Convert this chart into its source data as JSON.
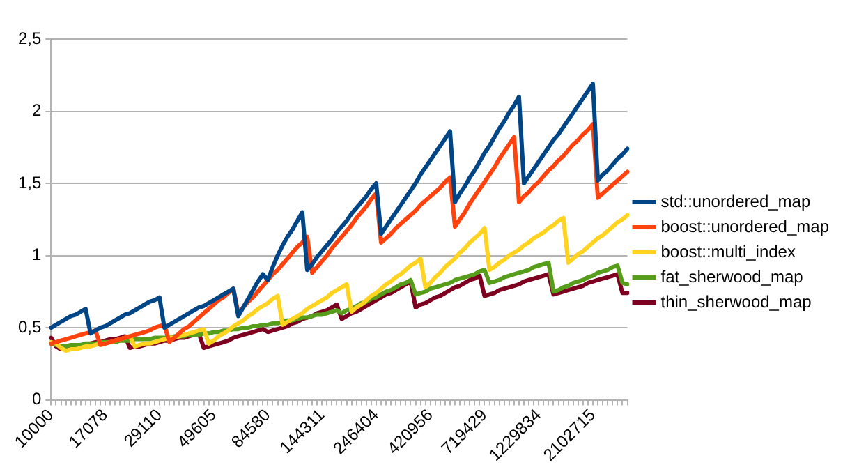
{
  "chart_data": {
    "type": "line",
    "categories": [
      "10000",
      null,
      null,
      null,
      null,
      null,
      null,
      null,
      null,
      null,
      null,
      "17078",
      null,
      null,
      null,
      null,
      null,
      null,
      null,
      null,
      null,
      null,
      "29110",
      null,
      null,
      null,
      null,
      null,
      null,
      null,
      null,
      null,
      null,
      "49605",
      null,
      null,
      null,
      null,
      null,
      null,
      null,
      null,
      null,
      null,
      "84580",
      null,
      null,
      null,
      null,
      null,
      null,
      null,
      null,
      null,
      null,
      "144311",
      null,
      null,
      null,
      null,
      null,
      null,
      null,
      null,
      null,
      null,
      "246404",
      null,
      null,
      null,
      null,
      null,
      null,
      null,
      null,
      null,
      null,
      "420956",
      null,
      null,
      null,
      null,
      null,
      null,
      null,
      null,
      null,
      null,
      "719429",
      null,
      null,
      null,
      null,
      null,
      null,
      null,
      null,
      null,
      null,
      "1229834",
      null,
      null,
      null,
      null,
      null,
      null,
      null,
      null,
      null,
      null,
      "2102715",
      null,
      null,
      null,
      null,
      null,
      null,
      null
    ],
    "series": [
      {
        "name": "std::unordered_map",
        "color": "#004586",
        "values": [
          0.5,
          0.52,
          0.54,
          0.56,
          0.58,
          0.59,
          0.61,
          0.63,
          0.46,
          0.48,
          0.5,
          0.51,
          0.53,
          0.55,
          0.57,
          0.59,
          0.6,
          0.62,
          0.64,
          0.66,
          0.68,
          0.69,
          0.71,
          0.5,
          0.52,
          0.54,
          0.56,
          0.58,
          0.6,
          0.62,
          0.64,
          0.65,
          0.67,
          0.69,
          0.71,
          0.73,
          0.75,
          0.77,
          0.58,
          0.64,
          0.7,
          0.76,
          0.82,
          0.87,
          0.83,
          0.92,
          1.0,
          1.07,
          1.13,
          1.18,
          1.24,
          1.3,
          0.9,
          0.94,
          0.99,
          1.03,
          1.07,
          1.11,
          1.16,
          1.2,
          1.24,
          1.29,
          1.33,
          1.37,
          1.41,
          1.46,
          1.5,
          1.15,
          1.2,
          1.25,
          1.3,
          1.35,
          1.4,
          1.45,
          1.5,
          1.56,
          1.61,
          1.66,
          1.71,
          1.76,
          1.81,
          1.86,
          1.37,
          1.43,
          1.48,
          1.54,
          1.59,
          1.65,
          1.71,
          1.76,
          1.82,
          1.88,
          1.93,
          1.99,
          2.04,
          2.1,
          1.5,
          1.55,
          1.6,
          1.65,
          1.7,
          1.75,
          1.8,
          1.84,
          1.89,
          1.94,
          1.99,
          2.04,
          2.09,
          2.14,
          2.19,
          1.52,
          1.56,
          1.59,
          1.63,
          1.67,
          1.7,
          1.74
        ]
      },
      {
        "name": "boost::unordered_map",
        "color": "#ff420e",
        "values": [
          0.39,
          0.4,
          0.41,
          0.42,
          0.43,
          0.44,
          0.45,
          0.46,
          0.47,
          0.48,
          0.38,
          0.39,
          0.4,
          0.41,
          0.42,
          0.43,
          0.44,
          0.45,
          0.46,
          0.47,
          0.48,
          0.5,
          0.51,
          0.52,
          0.4,
          0.43,
          0.46,
          0.49,
          0.51,
          0.54,
          0.57,
          0.6,
          0.63,
          0.66,
          0.69,
          0.71,
          0.74,
          0.77,
          0.6,
          0.64,
          0.68,
          0.71,
          0.75,
          0.79,
          0.83,
          0.87,
          0.9,
          0.94,
          0.98,
          1.02,
          1.06,
          1.09,
          1.13,
          0.88,
          0.92,
          0.96,
          1.0,
          1.05,
          1.09,
          1.13,
          1.17,
          1.21,
          1.26,
          1.3,
          1.34,
          1.39,
          1.43,
          1.09,
          1.12,
          1.15,
          1.19,
          1.22,
          1.25,
          1.28,
          1.31,
          1.35,
          1.38,
          1.41,
          1.44,
          1.47,
          1.51,
          1.54,
          1.2,
          1.25,
          1.3,
          1.36,
          1.41,
          1.46,
          1.51,
          1.56,
          1.61,
          1.67,
          1.72,
          1.77,
          1.82,
          1.37,
          1.41,
          1.44,
          1.48,
          1.51,
          1.55,
          1.59,
          1.62,
          1.66,
          1.69,
          1.73,
          1.77,
          1.8,
          1.84,
          1.87,
          1.91,
          1.4,
          1.43,
          1.46,
          1.49,
          1.52,
          1.55,
          1.58
        ]
      },
      {
        "name": "boost::multi_index",
        "color": "#ffd320",
        "values": [
          0.4,
          0.39,
          0.36,
          0.34,
          0.35,
          0.35,
          0.36,
          0.37,
          0.37,
          0.38,
          0.39,
          0.39,
          0.4,
          0.41,
          0.42,
          0.43,
          0.44,
          0.37,
          0.38,
          0.39,
          0.39,
          0.4,
          0.41,
          0.42,
          0.43,
          0.43,
          0.44,
          0.45,
          0.46,
          0.47,
          0.48,
          0.49,
          0.39,
          0.41,
          0.44,
          0.46,
          0.48,
          0.51,
          0.53,
          0.55,
          0.58,
          0.6,
          0.63,
          0.65,
          0.67,
          0.7,
          0.72,
          0.52,
          0.54,
          0.56,
          0.58,
          0.6,
          0.63,
          0.65,
          0.67,
          0.69,
          0.71,
          0.74,
          0.76,
          0.78,
          0.8,
          0.61,
          0.64,
          0.66,
          0.69,
          0.72,
          0.74,
          0.77,
          0.8,
          0.82,
          0.85,
          0.87,
          0.9,
          0.93,
          0.95,
          0.98,
          0.78,
          0.81,
          0.85,
          0.88,
          0.92,
          0.95,
          0.98,
          1.02,
          1.05,
          1.09,
          1.12,
          1.15,
          1.19,
          0.9,
          0.92,
          0.95,
          0.97,
          1.0,
          1.02,
          1.04,
          1.07,
          1.09,
          1.12,
          1.14,
          1.16,
          1.19,
          1.21,
          1.24,
          1.26,
          0.95,
          0.98,
          1.01,
          1.03,
          1.06,
          1.09,
          1.12,
          1.14,
          1.17,
          1.2,
          1.23,
          1.25,
          1.28
        ]
      },
      {
        "name": "fat_sherwood_map",
        "color": "#579d1c",
        "values": [
          0.39,
          0.38,
          0.37,
          0.37,
          0.38,
          0.38,
          0.38,
          0.39,
          0.39,
          0.39,
          0.4,
          0.4,
          0.4,
          0.4,
          0.41,
          0.41,
          0.41,
          0.42,
          0.42,
          0.42,
          0.42,
          0.43,
          0.43,
          0.43,
          0.43,
          0.44,
          0.44,
          0.44,
          0.45,
          0.45,
          0.45,
          0.46,
          0.46,
          0.47,
          0.47,
          0.48,
          0.48,
          0.49,
          0.49,
          0.5,
          0.5,
          0.51,
          0.51,
          0.52,
          0.52,
          0.53,
          0.53,
          0.54,
          0.55,
          0.55,
          0.56,
          0.57,
          0.57,
          0.58,
          0.59,
          0.59,
          0.6,
          0.61,
          0.62,
          0.6,
          0.62,
          0.63,
          0.65,
          0.67,
          0.68,
          0.7,
          0.71,
          0.73,
          0.75,
          0.76,
          0.78,
          0.8,
          0.81,
          0.83,
          0.73,
          0.74,
          0.75,
          0.77,
          0.78,
          0.79,
          0.8,
          0.81,
          0.83,
          0.84,
          0.85,
          0.86,
          0.87,
          0.89,
          0.9,
          0.81,
          0.82,
          0.83,
          0.85,
          0.86,
          0.87,
          0.88,
          0.89,
          0.9,
          0.92,
          0.93,
          0.94,
          0.95,
          0.75,
          0.76,
          0.78,
          0.79,
          0.81,
          0.82,
          0.83,
          0.85,
          0.86,
          0.88,
          0.89,
          0.9,
          0.92,
          0.93,
          0.81,
          0.8
        ]
      },
      {
        "name": "thin_sherwood_map",
        "color": "#7e0021",
        "values": [
          0.43,
          0.37,
          0.35,
          0.36,
          0.36,
          0.37,
          0.38,
          0.38,
          0.39,
          0.4,
          0.4,
          0.41,
          0.42,
          0.42,
          0.43,
          0.44,
          0.36,
          0.37,
          0.37,
          0.38,
          0.39,
          0.39,
          0.4,
          0.41,
          0.41,
          0.42,
          0.43,
          0.43,
          0.44,
          0.45,
          0.46,
          0.36,
          0.37,
          0.38,
          0.39,
          0.4,
          0.41,
          0.43,
          0.44,
          0.45,
          0.46,
          0.47,
          0.48,
          0.49,
          0.47,
          0.48,
          0.49,
          0.5,
          0.51,
          0.53,
          0.54,
          0.56,
          0.57,
          0.58,
          0.6,
          0.61,
          0.62,
          0.64,
          0.66,
          0.56,
          0.58,
          0.6,
          0.61,
          0.63,
          0.65,
          0.67,
          0.69,
          0.71,
          0.73,
          0.74,
          0.76,
          0.78,
          0.8,
          0.82,
          0.64,
          0.66,
          0.67,
          0.69,
          0.71,
          0.72,
          0.74,
          0.76,
          0.78,
          0.79,
          0.81,
          0.83,
          0.84,
          0.86,
          0.72,
          0.73,
          0.74,
          0.76,
          0.77,
          0.78,
          0.79,
          0.8,
          0.82,
          0.83,
          0.84,
          0.85,
          0.86,
          0.87,
          0.73,
          0.74,
          0.75,
          0.76,
          0.77,
          0.78,
          0.79,
          0.81,
          0.82,
          0.83,
          0.84,
          0.85,
          0.86,
          0.87,
          0.74,
          0.74
        ]
      }
    ],
    "ylim": [
      0,
      2.5
    ],
    "yticks": [
      0,
      {
        "value": 0.5,
        "label": "0,5"
      },
      1,
      {
        "value": 1.5,
        "label": "1,5"
      },
      2,
      {
        "value": 2.5,
        "label": "2,5"
      }
    ],
    "grid": "y",
    "legend": "right",
    "marker": "none",
    "line_style": "solid"
  }
}
